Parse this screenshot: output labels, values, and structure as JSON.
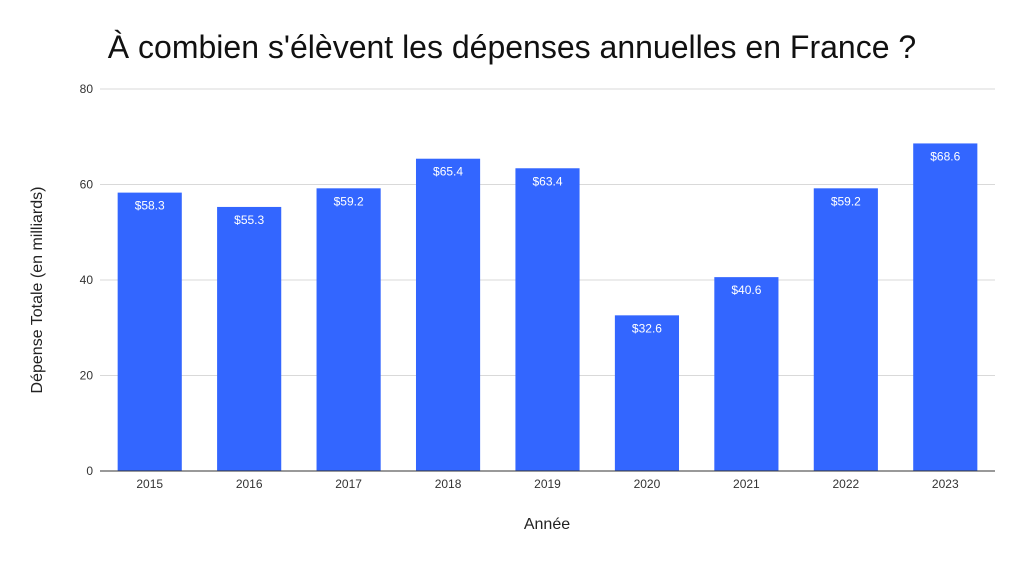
{
  "chart_data": {
    "type": "bar",
    "title": "À combien s'élèvent les dépenses annuelles en France ?",
    "xlabel": "Année",
    "ylabel": "Dépense Totale (en milliards)",
    "categories": [
      "2015",
      "2016",
      "2017",
      "2018",
      "2019",
      "2020",
      "2021",
      "2022",
      "2023"
    ],
    "values": [
      58.3,
      55.3,
      59.2,
      65.4,
      63.4,
      32.6,
      40.6,
      59.2,
      68.6
    ],
    "data_labels": [
      "$58.3",
      "$55.3",
      "$59.2",
      "$65.4",
      "$63.4",
      "$32.6",
      "$40.6",
      "$59.2",
      "$68.6"
    ],
    "ylim": [
      0,
      80
    ],
    "yticks": [
      0,
      20,
      40,
      60,
      80
    ],
    "grid": true,
    "legend": "none",
    "bar_color": "#3366FF"
  }
}
